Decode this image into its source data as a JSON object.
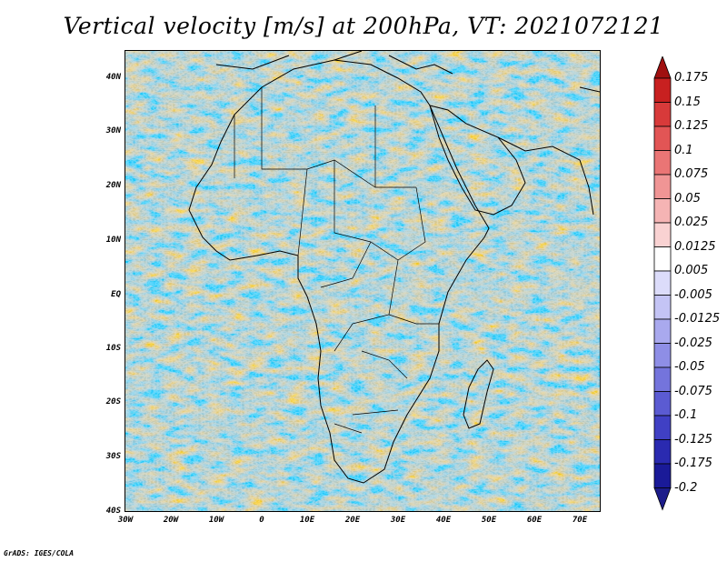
{
  "title": "Vertical velocity [m/s] at 200hPa, VT: 2021072121",
  "footer": "GrADS: IGES/COLA",
  "map": {
    "variable": "Vertical velocity",
    "units": "m/s",
    "level": "200hPa",
    "valid_time": "2021072121",
    "lat_range": [
      -40,
      45
    ],
    "lon_range": [
      -30,
      75
    ],
    "lat_ticks": [
      "40N",
      "30N",
      "20N",
      "10N",
      "EQ",
      "10S",
      "20S",
      "30S",
      "40S"
    ],
    "lon_ticks": [
      "30W",
      "20W",
      "10W",
      "0",
      "10E",
      "20E",
      "30E",
      "40E",
      "50E",
      "60E",
      "70E"
    ]
  },
  "colorbar": {
    "labels": [
      "0.175",
      "0.15",
      "0.125",
      "0.1",
      "0.075",
      "0.05",
      "0.025",
      "0.0125",
      "0.005",
      "-0.005",
      "-0.0125",
      "-0.025",
      "-0.05",
      "-0.075",
      "-0.1",
      "-0.125",
      "-0.175",
      "-0.2"
    ],
    "colors": [
      "#b01010",
      "#c82020",
      "#d83a3a",
      "#e25555",
      "#ea7575",
      "#f09595",
      "#f5b4b4",
      "#f9d2d2",
      "#ffffff",
      "#dcdcfa",
      "#c4c4f5",
      "#a9a9ee",
      "#8e8ee6",
      "#7474dc",
      "#5b5bd2",
      "#4040c4",
      "#2a2ab0",
      "#1a1a98"
    ],
    "top_color": "#a01010",
    "bottom_color": "#1c1c8a"
  },
  "colors": {
    "positive": "#e07070",
    "negative": "#7070e0",
    "neutral": "#f4f0f6",
    "land_border": "#000000"
  }
}
